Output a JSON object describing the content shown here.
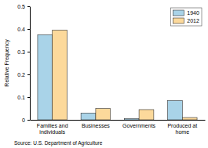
{
  "chart_data": {
    "type": "bar",
    "categories": [
      "Families and individuals",
      "Businesses",
      "Governments",
      "Produced at home"
    ],
    "series": [
      {
        "name": "1940",
        "color": "#a9d3e8",
        "values": [
          0.375,
          0.03,
          0.005,
          0.085
        ]
      },
      {
        "name": "2012",
        "color": "#fcd99b",
        "values": [
          0.395,
          0.05,
          0.045,
          0.01
        ]
      }
    ],
    "y_label": "Relative Frequency",
    "source": "Source: U.S. Department of Agriculture",
    "ylim": [
      0,
      0.5
    ],
    "yticks": [
      0,
      0.1,
      0.2,
      0.3,
      0.4,
      0.5
    ],
    "legend": "top-right",
    "grid": false
  }
}
